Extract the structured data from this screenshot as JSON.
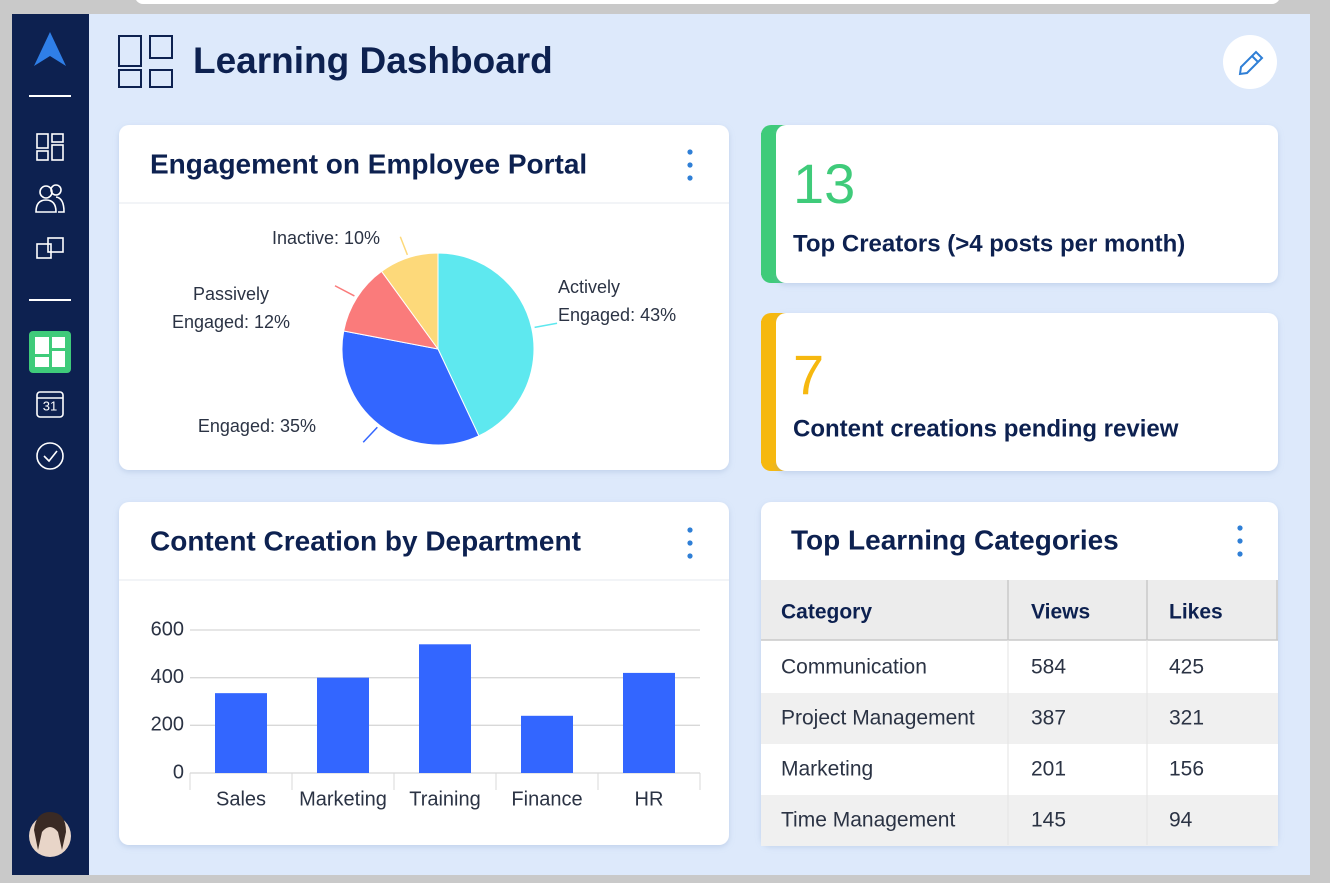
{
  "header": {
    "title": "Learning Dashboard"
  },
  "sidebar": {
    "calendar_day": "31"
  },
  "engagement": {
    "title": "Engagement on Employee Portal",
    "chart_data": {
      "type": "pie",
      "values": [
        43,
        35,
        12,
        10
      ],
      "value_labels": [
        "Actively Engaged: 43%",
        "Engaged: 35%",
        "Passively Engaged: 12%",
        "Inactive: 10%"
      ],
      "colors": [
        "#5ee8ef",
        "#3366ff",
        "#fa7b7b",
        "#fdd97a"
      ]
    }
  },
  "kpis": [
    {
      "value": 13,
      "label": "Top Creators (>4 posts per month)",
      "color": "#3fcb7a"
    },
    {
      "value": 7,
      "label": "Content creations pending review",
      "color": "#f6b80f"
    }
  ],
  "content_creation": {
    "title": "Content Creation by Department",
    "chart_data": {
      "type": "bar",
      "categories": [
        "Sales",
        "Marketing",
        "Training",
        "Finance",
        "HR"
      ],
      "values": [
        335,
        400,
        540,
        240,
        420
      ],
      "color": "#3366ff",
      "ylim": [
        0,
        600
      ],
      "yticks": [
        0,
        200,
        400,
        600
      ],
      "grid": true
    }
  },
  "top_categories": {
    "title": "Top Learning Categories",
    "table": {
      "columns": [
        "Category",
        "Views",
        "Likes"
      ],
      "rows": [
        [
          "Communication",
          584,
          425
        ],
        [
          "Project Management",
          387,
          321
        ],
        [
          "Marketing",
          201,
          156
        ],
        [
          "Time Management",
          145,
          94
        ]
      ]
    }
  }
}
